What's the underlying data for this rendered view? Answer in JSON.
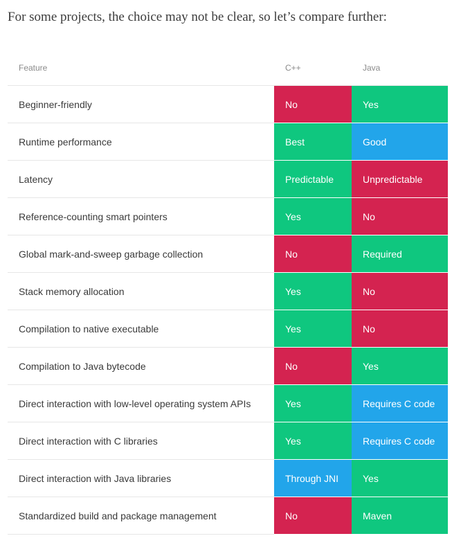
{
  "intro": "For some projects, the choice may not be clear, so let’s compare further:",
  "table": {
    "headers": [
      "Feature",
      "C++",
      "Java"
    ],
    "rows": [
      {
        "feature": "Beginner-friendly",
        "cpp": "No",
        "java": "Yes"
      },
      {
        "feature": "Runtime performance",
        "cpp": "Best",
        "java": "Good"
      },
      {
        "feature": "Latency",
        "cpp": "Predictable",
        "java": "Unpredictable"
      },
      {
        "feature": "Reference-counting smart pointers",
        "cpp": "Yes",
        "java": "No"
      },
      {
        "feature": "Global mark-and-sweep garbage collection",
        "cpp": "No",
        "java": "Required"
      },
      {
        "feature": "Stack memory allocation",
        "cpp": "Yes",
        "java": "No"
      },
      {
        "feature": "Compilation to native executable",
        "cpp": "Yes",
        "java": "No"
      },
      {
        "feature": "Compilation to Java bytecode",
        "cpp": "No",
        "java": "Yes"
      },
      {
        "feature": "Direct interaction with low-level operating system APIs",
        "cpp": "Yes",
        "java": "Requires C code"
      },
      {
        "feature": "Direct interaction with C libraries",
        "cpp": "Yes",
        "java": "Requires C code"
      },
      {
        "feature": "Direct interaction with Java libraries",
        "cpp": "Through JNI",
        "java": "Yes"
      },
      {
        "feature": "Standardized build and package management",
        "cpp": "No",
        "java": "Maven"
      }
    ]
  },
  "colors": {
    "green": "#0fc77f",
    "red": "#d42350",
    "blue": "#22a5ea"
  }
}
